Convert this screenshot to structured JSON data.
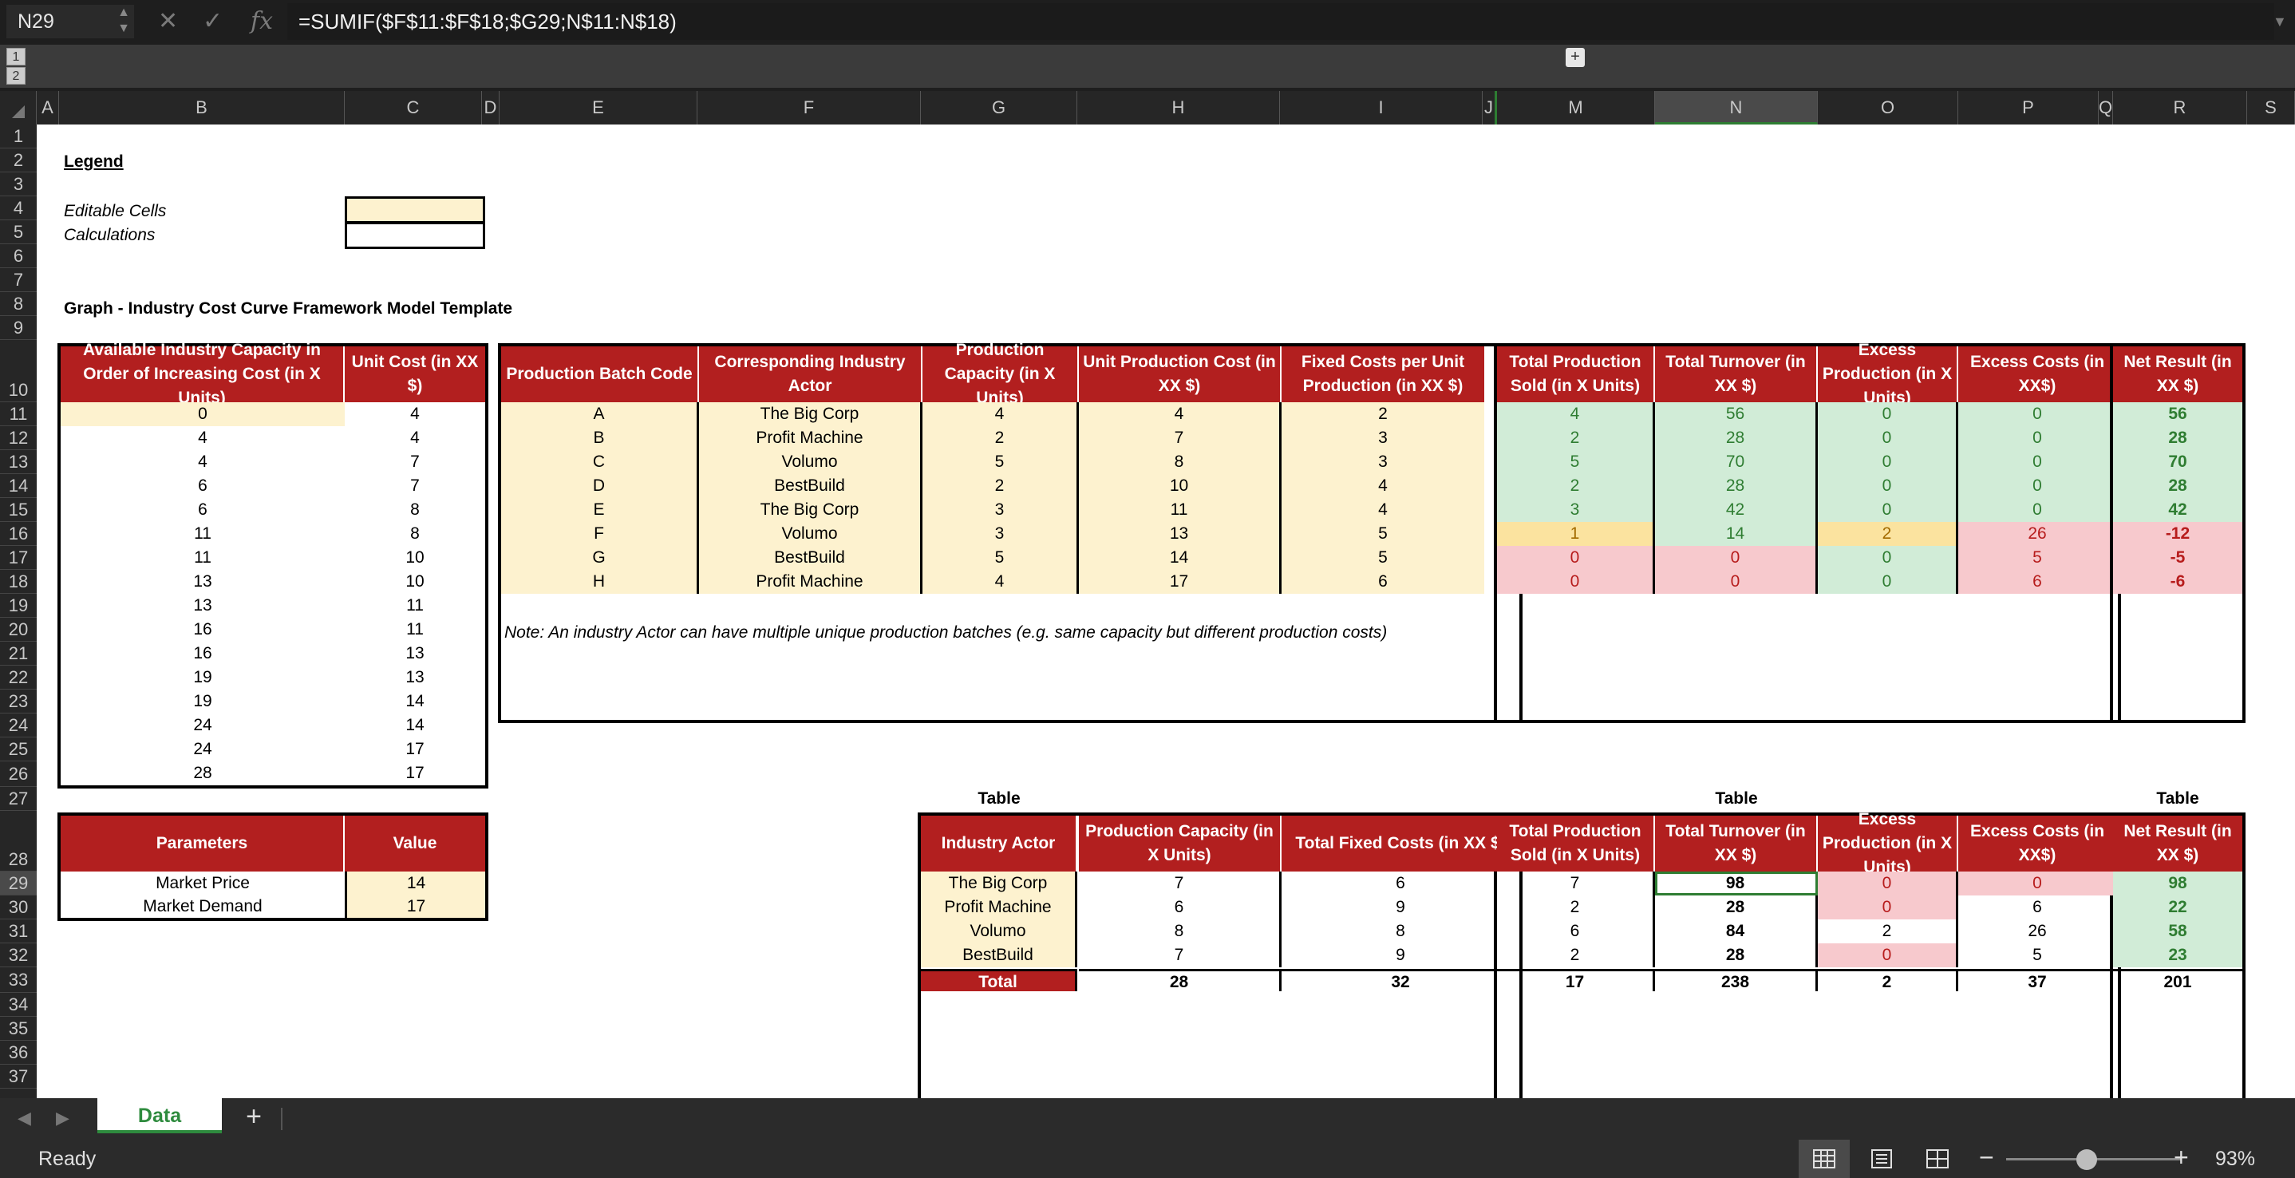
{
  "namebox": "N29",
  "formula": "=SUMIF($F$11:$F$18;$G29;N$11:N$18)",
  "outline_levels": [
    "1",
    "2"
  ],
  "columns": [
    "A",
    "B",
    "C",
    "D",
    "E",
    "F",
    "G",
    "H",
    "I",
    "J",
    "M",
    "N",
    "O",
    "P",
    "Q",
    "R",
    "S"
  ],
  "rows": [
    "1",
    "2",
    "3",
    "4",
    "5",
    "6",
    "7",
    "8",
    "9",
    "10",
    "11",
    "12",
    "13",
    "14",
    "15",
    "16",
    "17",
    "18",
    "19",
    "20",
    "21",
    "22",
    "23",
    "24",
    "25",
    "26",
    "27",
    "28",
    "29",
    "30",
    "31",
    "32",
    "33",
    "34",
    "35",
    "36",
    "37"
  ],
  "legend": {
    "title": "Legend",
    "editable": "Editable Cells",
    "calc": "Calculations"
  },
  "graph_title": "Graph - Industry Cost Curve Framework Model Template",
  "cap_table": {
    "h1": "Available Industry Capacity in Order of Increasing Cost (in X Units)",
    "h2": "Unit Cost (in XX $)",
    "rows": [
      [
        "0",
        "4"
      ],
      [
        "4",
        "4"
      ],
      [
        "4",
        "7"
      ],
      [
        "6",
        "7"
      ],
      [
        "6",
        "8"
      ],
      [
        "11",
        "8"
      ],
      [
        "11",
        "10"
      ],
      [
        "13",
        "10"
      ],
      [
        "13",
        "11"
      ],
      [
        "16",
        "11"
      ],
      [
        "16",
        "13"
      ],
      [
        "19",
        "13"
      ],
      [
        "19",
        "14"
      ],
      [
        "24",
        "14"
      ],
      [
        "24",
        "17"
      ],
      [
        "28",
        "17"
      ]
    ]
  },
  "main_table": {
    "headers": [
      "Production Batch Code",
      "Corresponding Industry Actor",
      "Production Capacity (in X Units)",
      "Unit Production Cost (in XX $)",
      "Fixed Costs per Unit Production (in XX $)"
    ],
    "rows": [
      [
        "A",
        "The Big Corp",
        "4",
        "4",
        "2"
      ],
      [
        "B",
        "Profit Machine",
        "2",
        "7",
        "3"
      ],
      [
        "C",
        "Volumo",
        "5",
        "8",
        "3"
      ],
      [
        "D",
        "BestBuild",
        "2",
        "10",
        "4"
      ],
      [
        "E",
        "The Big Corp",
        "3",
        "11",
        "4"
      ],
      [
        "F",
        "Volumo",
        "3",
        "13",
        "5"
      ],
      [
        "G",
        "BestBuild",
        "5",
        "14",
        "5"
      ],
      [
        "H",
        "Profit Machine",
        "4",
        "17",
        "6"
      ]
    ]
  },
  "result_table": {
    "headers": [
      "Total Production Sold (in X Units)",
      "Total Turnover (in XX $)",
      "Excess Production (in X Units)",
      "Excess Costs (in XX$)"
    ],
    "rows": [
      [
        "4",
        "56",
        "0",
        "0"
      ],
      [
        "2",
        "28",
        "0",
        "0"
      ],
      [
        "5",
        "70",
        "0",
        "0"
      ],
      [
        "2",
        "28",
        "0",
        "0"
      ],
      [
        "3",
        "42",
        "0",
        "0"
      ],
      [
        "1",
        "14",
        "2",
        "26"
      ],
      [
        "0",
        "0",
        "0",
        "5"
      ],
      [
        "0",
        "0",
        "0",
        "6"
      ]
    ]
  },
  "net_table": {
    "header": "Net Result (in XX $)",
    "values": [
      "56",
      "28",
      "70",
      "28",
      "42",
      "-12",
      "-5",
      "-6"
    ]
  },
  "note": "Note: An industry Actor can have multiple unique production batches (e.g. same capacity but different production costs)",
  "params": {
    "h1": "Parameters",
    "h2": "Value",
    "rows": [
      [
        "Market Price",
        "14"
      ],
      [
        "Market Demand",
        "17"
      ]
    ]
  },
  "table_label": "Table",
  "summary": {
    "headers": [
      "Industry Actor",
      "Production Capacity (in X Units)",
      "Total Fixed Costs (in XX $)",
      "Total Production Sold (in X Units)",
      "Total Turnover (in XX $)",
      "Excess Production (in X Units)",
      "Excess Costs (in XX$)",
      "Net Result (in XX $)"
    ],
    "rows": [
      [
        "The Big Corp",
        "7",
        "6",
        "7",
        "98",
        "0",
        "0",
        "98"
      ],
      [
        "Profit Machine",
        "6",
        "9",
        "2",
        "28",
        "0",
        "6",
        "22"
      ],
      [
        "Volumo",
        "8",
        "8",
        "6",
        "84",
        "2",
        "26",
        "58"
      ],
      [
        "BestBuild",
        "7",
        "9",
        "2",
        "28",
        "0",
        "5",
        "23"
      ]
    ],
    "total": [
      "Total",
      "28",
      "32",
      "17",
      "238",
      "2",
      "37",
      "201"
    ]
  },
  "tabs": {
    "sheet": "Data",
    "add": "+"
  },
  "status": {
    "ready": "Ready",
    "zoom": "93%",
    "zoom_level": 0.46
  },
  "colors": {
    "header_red": "#b21f1f",
    "cream": "#fdf2cf",
    "green": "#d1ecd7",
    "red": "#f7c9cd",
    "tab_green": "#2e8b3e"
  }
}
